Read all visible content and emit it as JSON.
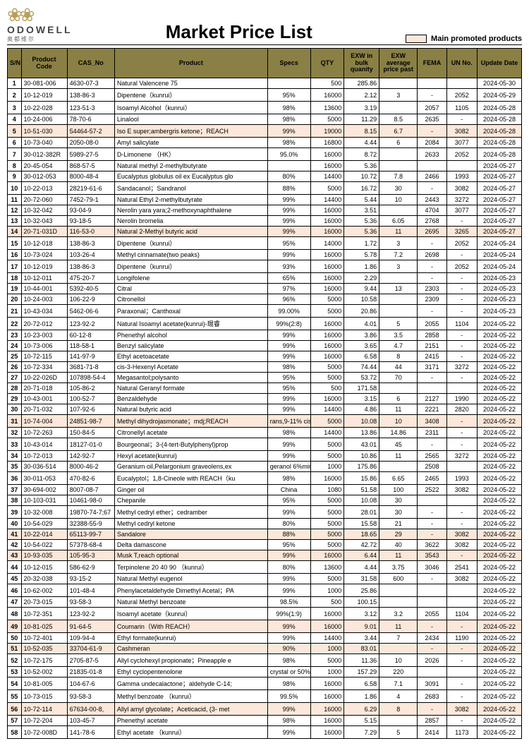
{
  "brand": {
    "name": "ODOWELL",
    "sub": "奥都维尔"
  },
  "title": "Market Price List",
  "legend_label": "Main promoted products",
  "legend_swatch_color": "#fbe8da",
  "header_bg": "#8a8045",
  "columns": [
    "S/N",
    "Product Code",
    "CAS_No",
    "Product",
    "Specs",
    "QTY",
    "EXW in bulk quanity",
    "EXW average price past",
    "FEMA",
    "UN No.",
    "Update Date"
  ],
  "rows": [
    {
      "sn": 1,
      "code": "30-081-006",
      "cas": "4630-07-3",
      "product": "Natural Valencene 75",
      "specs": "",
      "qty": "500",
      "exwb": "285.86",
      "exwa": "",
      "fema": "",
      "un": "",
      "date": "2024-05-30",
      "promo": false
    },
    {
      "sn": 2,
      "code": "10-12-019",
      "cas": "138-86-3",
      "product": "Dipentene（kunrui）",
      "specs": "95%",
      "qty": "16000",
      "exwb": "2.12",
      "exwa": "3",
      "fema": "-",
      "un": "2052",
      "date": "2024-05-29",
      "promo": false
    },
    {
      "sn": 3,
      "code": "10-22-028",
      "cas": "123-51-3",
      "product": "Isoamyl Alcohol（kunrui）",
      "specs": "98%",
      "qty": "13600",
      "exwb": "3.19",
      "exwa": "",
      "fema": "2057",
      "un": "1105",
      "date": "2024-05-28",
      "promo": false
    },
    {
      "sn": 4,
      "code": "10-24-006",
      "cas": "78-70-6",
      "product": "Linalool",
      "specs": "98%",
      "qty": "5000",
      "exwb": "11.29",
      "exwa": "8.5",
      "fema": "2635",
      "un": "-",
      "date": "2024-05-28",
      "promo": false
    },
    {
      "sn": 5,
      "code": "10-51-030",
      "cas": "54464-57-2",
      "product": "Iso E super;ambergris ketone；REACH",
      "specs": "99%",
      "qty": "19000",
      "exwb": "8.15",
      "exwa": "6.7",
      "fema": "-",
      "un": "3082",
      "date": "2024-05-28",
      "promo": true
    },
    {
      "sn": 6,
      "code": "10-73-040",
      "cas": "2050-08-0",
      "product": "Amyl salicylate",
      "specs": "98%",
      "qty": "16800",
      "exwb": "4.44",
      "exwa": "6",
      "fema": "2084",
      "un": "3077",
      "date": "2024-05-28",
      "promo": false
    },
    {
      "sn": 7,
      "code": "30-012-382R",
      "cas": "5989-27-5",
      "product": "D-Limonene （HK）",
      "specs": "95.0%",
      "qty": "16000",
      "exwb": "8.72",
      "exwa": "",
      "fema": "2633",
      "un": "2052",
      "date": "2024-05-28",
      "promo": false
    },
    {
      "sn": 8,
      "code": "20-45-054",
      "cas": "868-57-5",
      "product": "Natural methyl 2-methylbutyrate",
      "specs": "",
      "qty": "16000",
      "exwb": "5.36",
      "exwa": "",
      "fema": "",
      "un": "",
      "date": "2024-05-27",
      "promo": false
    },
    {
      "sn": 9,
      "code": "30-012-053",
      "cas": "8000-48-4",
      "product": "Eucalyptus globulus oil ex Eucalyptus glo",
      "specs": "80%",
      "qty": "14400",
      "exwb": "10.72",
      "exwa": "7.8",
      "fema": "2466",
      "un": "1993",
      "date": "2024-05-27",
      "promo": false
    },
    {
      "sn": 10,
      "code": "10-22-013",
      "cas": "28219-61-6",
      "product": "Sandacanol；Sandranol",
      "specs": "88%",
      "qty": "5000",
      "exwb": "16.72",
      "exwa": "30",
      "fema": "-",
      "un": "3082",
      "date": "2024-05-27",
      "promo": false
    },
    {
      "sn": 11,
      "code": "20-72-060",
      "cas": "7452-79-1",
      "product": "Natural Ethyl 2-methylbutyrate",
      "specs": "99%",
      "qty": "14400",
      "exwb": "5.44",
      "exwa": "10",
      "fema": "2443",
      "un": "3272",
      "date": "2024-05-27",
      "promo": false
    },
    {
      "sn": 12,
      "code": "10-32-042",
      "cas": "93-04-9",
      "product": "Nerolin yara yara;2-methoxynaphthalene",
      "specs": "99%",
      "qty": "16000",
      "exwb": "3.51",
      "exwa": "",
      "fema": "4704",
      "un": "3077",
      "date": "2024-05-27",
      "promo": false
    },
    {
      "sn": 13,
      "code": "10-32-043",
      "cas": "93-18-5",
      "product": "Nerolin bromelia",
      "specs": "99%",
      "qty": "16000",
      "exwb": "5.36",
      "exwa": "6.05",
      "fema": "2768",
      "un": "-",
      "date": "2024-05-27",
      "promo": false
    },
    {
      "sn": 14,
      "code": "20-71-031D",
      "cas": "116-53-0",
      "product": "Natural 2-Methyl butyric acid",
      "specs": "99%",
      "qty": "16000",
      "exwb": "5.36",
      "exwa": "11",
      "fema": "2695",
      "un": "3265",
      "date": "2024-05-27",
      "promo": true
    },
    {
      "sn": 15,
      "code": "10-12-018",
      "cas": "138-86-3",
      "product": "Dipentene（kunrui）",
      "specs": "95%",
      "qty": "14000",
      "exwb": "1.72",
      "exwa": "3",
      "fema": "-",
      "un": "2052",
      "date": "2024-05-24",
      "promo": false
    },
    {
      "sn": 16,
      "code": "10-73-024",
      "cas": "103-26-4",
      "product": "Methyl cinnamate(two peaks)",
      "specs": "99%",
      "qty": "16000",
      "exwb": "5.78",
      "exwa": "7.2",
      "fema": "2698",
      "un": "-",
      "date": "2024-05-24",
      "promo": false
    },
    {
      "sn": 17,
      "code": "10-12-019",
      "cas": "138-86-3",
      "product": "Dipentene（kunrui）",
      "specs": "93%",
      "qty": "16000",
      "exwb": "1.86",
      "exwa": "3",
      "fema": "-",
      "un": "2052",
      "date": "2024-05-24",
      "promo": false
    },
    {
      "sn": 18,
      "code": "10-12-011",
      "cas": "475-20-7",
      "product": "Longifolene",
      "specs": "65%",
      "qty": "16000",
      "exwb": "2.29",
      "exwa": "",
      "fema": "-",
      "un": "-",
      "date": "2024-05-23",
      "promo": false
    },
    {
      "sn": 19,
      "code": "10-44-001",
      "cas": "5392-40-5",
      "product": "Citral",
      "specs": "97%",
      "qty": "16000",
      "exwb": "9.44",
      "exwa": "13",
      "fema": "2303",
      "un": "-",
      "date": "2024-05-23",
      "promo": false
    },
    {
      "sn": 20,
      "code": "10-24-003",
      "cas": "106-22-9",
      "product": "Citronellol",
      "specs": "96%",
      "qty": "5000",
      "exwb": "10.58",
      "exwa": "",
      "fema": "2309",
      "un": "-",
      "date": "2024-05-23",
      "promo": false
    },
    {
      "sn": 21,
      "code": "10-43-034",
      "cas": "5462-06-6",
      "product": "Paraxonal；Canthoxal",
      "specs": "99.00%",
      "qty": "5000",
      "exwb": "20.86",
      "exwa": "",
      "fema": "-",
      "un": "-",
      "date": "2024-05-23",
      "promo": false
    },
    {
      "sn": 22,
      "code": "20-72-012",
      "cas": "123-92-2",
      "product": "Natural Isoamyl acetate(kunrui)-琨睿",
      "specs": "99%(2:8)",
      "qty": "16000",
      "exwb": "4.01",
      "exwa": "5",
      "fema": "2055",
      "un": "1104",
      "date": "2024-05-22",
      "promo": false
    },
    {
      "sn": 23,
      "code": "10-23-003",
      "cas": "60-12-8",
      "product": "Phenethyl alcohol",
      "specs": "99%",
      "qty": "16000",
      "exwb": "3.86",
      "exwa": "3.5",
      "fema": "2858",
      "un": "-",
      "date": "2024-05-22",
      "promo": false
    },
    {
      "sn": 24,
      "code": "10-73-006",
      "cas": "118-58-1",
      "product": "Benzyl salicylate",
      "specs": "99%",
      "qty": "16000",
      "exwb": "3.65",
      "exwa": "4.7",
      "fema": "2151",
      "un": "-",
      "date": "2024-05-22",
      "promo": false
    },
    {
      "sn": 25,
      "code": "10-72-115",
      "cas": "141-97-9",
      "product": "Ethyl acetoacetate",
      "specs": "99%",
      "qty": "16000",
      "exwb": "6.58",
      "exwa": "8",
      "fema": "2415",
      "un": "-",
      "date": "2024-05-22",
      "promo": false
    },
    {
      "sn": 26,
      "code": "10-72-334",
      "cas": "3681-71-8",
      "product": "cis-3-Hexenyl Acetate",
      "specs": "98%",
      "qty": "5000",
      "exwb": "74.44",
      "exwa": "44",
      "fema": "3171",
      "un": "3272",
      "date": "2024-05-22",
      "promo": false
    },
    {
      "sn": 27,
      "code": "10-22-026D",
      "cas": "107898-54-4",
      "product": "Megasantol;polysanto",
      "specs": "95%",
      "qty": "5000",
      "exwb": "53.72",
      "exwa": "70",
      "fema": "-",
      "un": "-",
      "date": "2024-05-22",
      "promo": false
    },
    {
      "sn": 28,
      "code": "20-71-018",
      "cas": "105-86-2",
      "product": "Natural Geranyl formate",
      "specs": "95%",
      "qty": "500",
      "exwb": "171.58",
      "exwa": "",
      "fema": "",
      "un": "",
      "date": "2024-05-22",
      "promo": false
    },
    {
      "sn": 29,
      "code": "10-43-001",
      "cas": "100-52-7",
      "product": "Benzaldehyde",
      "specs": "99%",
      "qty": "16000",
      "exwb": "3.15",
      "exwa": "6",
      "fema": "2127",
      "un": "1990",
      "date": "2024-05-22",
      "promo": false
    },
    {
      "sn": 30,
      "code": "20-71-032",
      "cas": "107-92-6",
      "product": "Natural butyric acid",
      "specs": "99%",
      "qty": "14400",
      "exwb": "4.86",
      "exwa": "11",
      "fema": "2221",
      "un": "2820",
      "date": "2024-05-22",
      "promo": false
    },
    {
      "sn": 31,
      "code": "10-74-004",
      "cas": "24851-98-7",
      "product": "Methyl dihydrojasmonate；mdj;REACH",
      "specs": "rans,9-11% cis is",
      "qty": "5000",
      "exwb": "10.08",
      "exwa": "10",
      "fema": "3408",
      "un": "-",
      "date": "2024-05-22",
      "promo": true
    },
    {
      "sn": 32,
      "code": "10-72-263",
      "cas": "150-84-5",
      "product": "Citronellyl acetate",
      "specs": "98%",
      "qty": "14400",
      "exwb": "13.86",
      "exwa": "14.86",
      "fema": "2311",
      "un": "-",
      "date": "2024-05-22",
      "promo": false
    },
    {
      "sn": 33,
      "code": "10-43-014",
      "cas": "18127-01-0",
      "product": "Bourgeonal；3-(4-tert-Butylphenyl)prop",
      "specs": "99%",
      "qty": "5000",
      "exwb": "43.01",
      "exwa": "45",
      "fema": "-",
      "un": "-",
      "date": "2024-05-22",
      "promo": false
    },
    {
      "sn": 34,
      "code": "10-72-013",
      "cas": "142-92-7",
      "product": "Hexyl acetate(kunrui)",
      "specs": "99%",
      "qty": "5000",
      "exwb": "10.86",
      "exwa": "11",
      "fema": "2565",
      "un": "3272",
      "date": "2024-05-22",
      "promo": false
    },
    {
      "sn": 35,
      "code": "30-036-514",
      "cas": "8000-46-2",
      "product": "Geranium oil,Pelargonium graveolens,ex",
      "specs": "geranol 6%min",
      "qty": "1000",
      "exwb": "175.86",
      "exwa": "",
      "fema": "2508",
      "un": "",
      "date": "2024-05-22",
      "promo": false
    },
    {
      "sn": 36,
      "code": "30-011-053",
      "cas": "470-82-6",
      "product": "Eucalyptol；1,8-Cineole with REACH（ku",
      "specs": "98%",
      "qty": "16000",
      "exwb": "15.86",
      "exwa": "6.65",
      "fema": "2465",
      "un": "1993",
      "date": "2024-05-22",
      "promo": false
    },
    {
      "sn": 37,
      "code": "30-694-002",
      "cas": "8007-08-7",
      "product": "Ginger oil",
      "specs": "China",
      "qty": "1080",
      "exwb": "51.58",
      "exwa": "100",
      "fema": "2522",
      "un": "3082",
      "date": "2024-05-22",
      "promo": false
    },
    {
      "sn": 38,
      "code": "10-103-031",
      "cas": "10461-98-0",
      "product": "Chepanile",
      "specs": "95%",
      "qty": "5000",
      "exwb": "10.08",
      "exwa": "30",
      "fema": "",
      "un": "",
      "date": "2024-05-22",
      "promo": false
    },
    {
      "sn": 39,
      "code": "10-32-008",
      "cas": "19870-74-7;67",
      "product": "Methyl cedryl ether；cedramber",
      "specs": "99%",
      "qty": "5000",
      "exwb": "28.01",
      "exwa": "30",
      "fema": "-",
      "un": "-",
      "date": "2024-05-22",
      "promo": false
    },
    {
      "sn": 40,
      "code": "10-54-029",
      "cas": "32388-55-9",
      "product": "Methyl cedryl ketone",
      "specs": "80%",
      "qty": "5000",
      "exwb": "15.58",
      "exwa": "21",
      "fema": "-",
      "un": "-",
      "date": "2024-05-22",
      "promo": false
    },
    {
      "sn": 41,
      "code": "10-22-014",
      "cas": "65113-99-7",
      "product": "Sandalore",
      "specs": "88%",
      "qty": "5000",
      "exwb": "18.65",
      "exwa": "29",
      "fema": "-",
      "un": "3082",
      "date": "2024-05-22",
      "promo": true
    },
    {
      "sn": 42,
      "code": "10-54-022",
      "cas": "57378-68-4",
      "product": "Delta damascone",
      "specs": "95%",
      "qty": "5000",
      "exwb": "42.72",
      "exwa": "40",
      "fema": "3622",
      "un": "3082",
      "date": "2024-05-22",
      "promo": false
    },
    {
      "sn": 43,
      "code": "10-93-035",
      "cas": "105-95-3",
      "product": "Musk T,reach optional",
      "specs": "99%",
      "qty": "16000",
      "exwb": "6.44",
      "exwa": "11",
      "fema": "3543",
      "un": "-",
      "date": "2024-05-22",
      "promo": true
    },
    {
      "sn": 44,
      "code": "10-12-015",
      "cas": "586-62-9",
      "product": "Terpinolene 20 40 90 （kunrui）",
      "specs": "80%",
      "qty": "13600",
      "exwb": "4.44",
      "exwa": "3.75",
      "fema": "3046",
      "un": "2541",
      "date": "2024-05-22",
      "promo": false
    },
    {
      "sn": 45,
      "code": "20-32-038",
      "cas": "93-15-2",
      "product": "Natural Methyl eugenol",
      "specs": "99%",
      "qty": "5000",
      "exwb": "31.58",
      "exwa": "600",
      "fema": "-",
      "un": "3082",
      "date": "2024-05-22",
      "promo": false
    },
    {
      "sn": 46,
      "code": "10-62-002",
      "cas": "101-48-4",
      "product": "Phenylacetaldehyde Dimethyl Acetal；PA",
      "specs": "99%",
      "qty": "1000",
      "exwb": "25.86",
      "exwa": "",
      "fema": "",
      "un": "",
      "date": "2024-05-22",
      "promo": false
    },
    {
      "sn": 47,
      "code": "20-73-015",
      "cas": "93-58-3",
      "product": "Natural Methyl benzoate",
      "specs": "98.5%",
      "qty": "500",
      "exwb": "100.15",
      "exwa": "",
      "fema": "",
      "un": "",
      "date": "2024-05-22",
      "promo": false
    },
    {
      "sn": 48,
      "code": "10-72-351",
      "cas": "123-92-2",
      "product": "Isoamyl acetate（kunrui）",
      "specs": "99%(1:9)",
      "qty": "16000",
      "exwb": "3.12",
      "exwa": "3.2",
      "fema": "2055",
      "un": "1104",
      "date": "2024-05-22",
      "promo": false
    },
    {
      "sn": 49,
      "code": "10-81-025",
      "cas": "91-64-5",
      "product": "Coumarin（With REACH）",
      "specs": "99%",
      "qty": "16000",
      "exwb": "9.01",
      "exwa": "11",
      "fema": "-",
      "un": "-",
      "date": "2024-05-22",
      "promo": true
    },
    {
      "sn": 50,
      "code": "10-72-401",
      "cas": "109-94-4",
      "product": "Ethyl formate(kunrui)",
      "specs": "99%",
      "qty": "14400",
      "exwb": "3.44",
      "exwa": "7",
      "fema": "2434",
      "un": "1190",
      "date": "2024-05-22",
      "promo": false
    },
    {
      "sn": 51,
      "code": "10-52-035",
      "cas": "33704-61-9",
      "product": "Cashmeran",
      "specs": "90%",
      "qty": "1000",
      "exwb": "83.01",
      "exwa": "",
      "fema": "-",
      "un": "-",
      "date": "2024-05-22",
      "promo": true
    },
    {
      "sn": 52,
      "code": "10-72-175",
      "cas": "2705-87-5",
      "product": "Allyl cyclohexyl propionate；Pineapple e",
      "specs": "98%",
      "qty": "5000",
      "exwb": "11.36",
      "exwa": "10",
      "fema": "2026",
      "un": "-",
      "date": "2024-05-22",
      "promo": false
    },
    {
      "sn": 53,
      "code": "10-52-002",
      "cas": "21835-01-8",
      "product": "Ethyl cyclopentenolone",
      "specs": "crystal or 50%in",
      "qty": "1000",
      "exwb": "157.29",
      "exwa": "220",
      "fema": "",
      "un": "",
      "date": "2024-05-22",
      "promo": false
    },
    {
      "sn": 54,
      "code": "10-81-005",
      "cas": "104-67-6",
      "product": "Gamma undecalactone；aldehyde C-14;",
      "specs": "98%",
      "qty": "16000",
      "exwb": "6.58",
      "exwa": "7.1",
      "fema": "3091",
      "un": "-",
      "date": "2024-05-22",
      "promo": false
    },
    {
      "sn": 55,
      "code": "10-73-015",
      "cas": "93-58-3",
      "product": "Methyl benzoate （kunrui）",
      "specs": "99.5%",
      "qty": "16000",
      "exwb": "1.86",
      "exwa": "4",
      "fema": "2683",
      "un": "-",
      "date": "2024-05-22",
      "promo": false
    },
    {
      "sn": 56,
      "code": "10-72-114",
      "cas": "67634-00-8,",
      "product": "Allyl amyl glycolate；Aceticacid, (3- met",
      "specs": "99%",
      "qty": "16000",
      "exwb": "6.29",
      "exwa": "8",
      "fema": "-",
      "un": "3082",
      "date": "2024-05-22",
      "promo": true
    },
    {
      "sn": 57,
      "code": "10-72-204",
      "cas": "103-45-7",
      "product": "Phenethyl acetate",
      "specs": "98%",
      "qty": "16000",
      "exwb": "5.15",
      "exwa": "",
      "fema": "2857",
      "un": "-",
      "date": "2024-05-22",
      "promo": false
    },
    {
      "sn": 58,
      "code": "10-72-008D",
      "cas": "141-78-6",
      "product": "Ethyl acetate （kunrui）",
      "specs": "99%",
      "qty": "16000",
      "exwb": "7.29",
      "exwa": "5",
      "fema": "2414",
      "un": "1173",
      "date": "2024-05-22",
      "promo": false
    }
  ]
}
